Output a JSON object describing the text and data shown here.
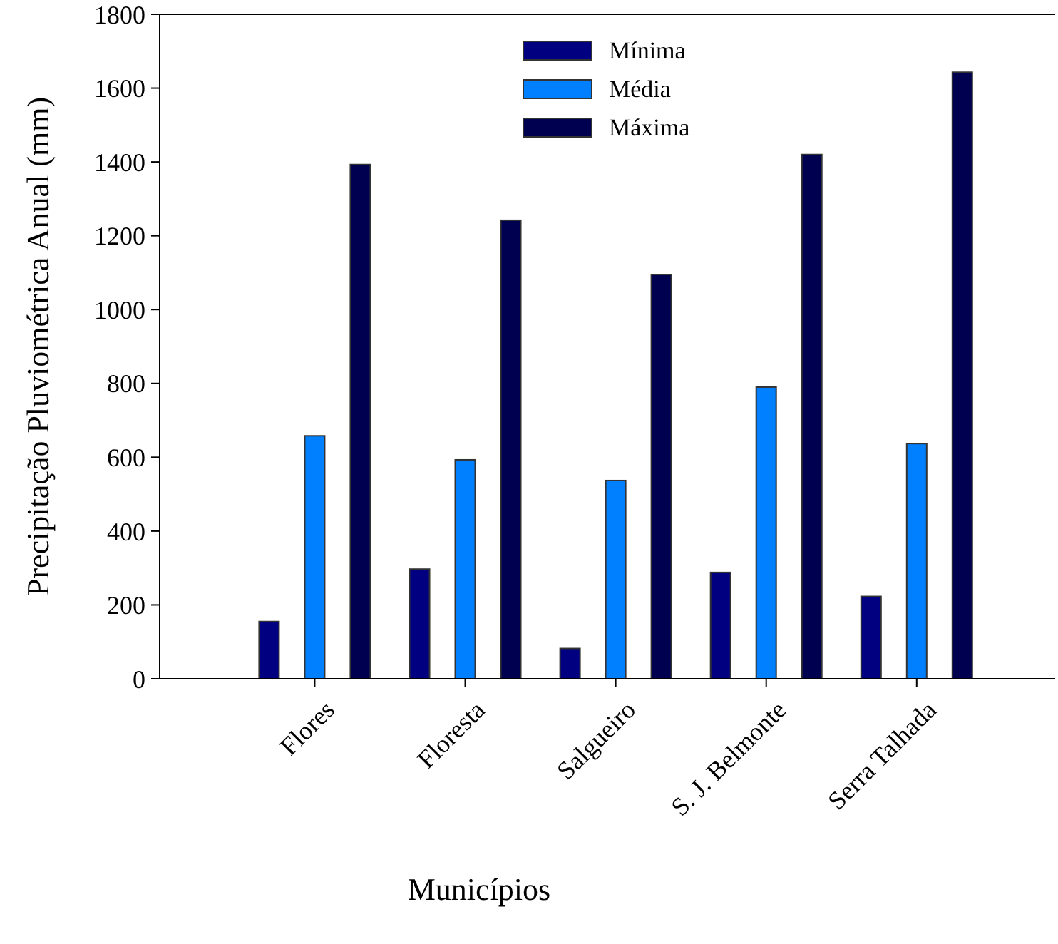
{
  "chart_data": {
    "type": "bar",
    "xlabel": "Municípios",
    "ylabel": "Precipitação Pluviométrica Anual (mm)",
    "categories": [
      "Flores",
      "Floresta",
      "Salgueiro",
      "S. J. Belmonte",
      "Serra Talhada"
    ],
    "series": [
      {
        "name": "Mínima",
        "color": "#000080",
        "values": [
          155,
          297,
          82,
          288,
          223
        ]
      },
      {
        "name": "Média",
        "color": "#0080ff",
        "values": [
          658,
          593,
          537,
          790,
          637
        ]
      },
      {
        "name": "Máxima",
        "color": "#000050",
        "values": [
          1393,
          1242,
          1095,
          1420,
          1643
        ]
      }
    ],
    "ylim": [
      0,
      1800
    ],
    "yticks": [
      0,
      200,
      400,
      600,
      800,
      1000,
      1200,
      1400,
      1600,
      1800
    ],
    "grid": false,
    "legend": "top"
  }
}
